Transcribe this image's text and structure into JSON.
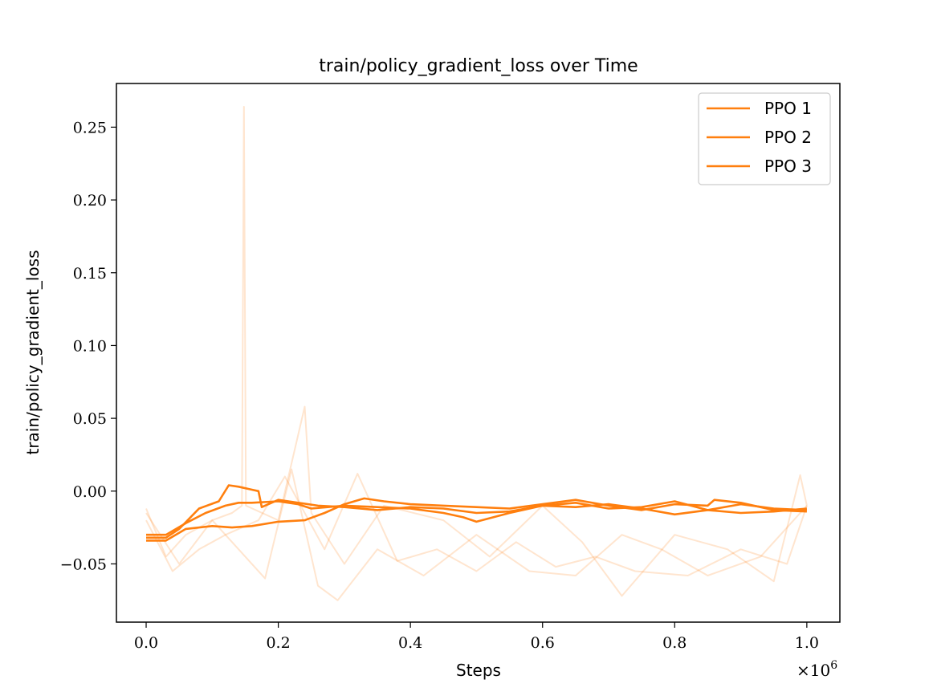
{
  "chart_data": {
    "type": "line",
    "title": "train/policy_gradient_loss over Time",
    "xlabel": "Steps",
    "ylabel": "train/policy_gradient_loss",
    "x_multiplier_label": "×10",
    "x_multiplier_exp": "6",
    "xlim": [
      -0.045,
      1.05
    ],
    "ylim": [
      -0.09,
      0.28
    ],
    "x_ticks": [
      0.0,
      0.2,
      0.4,
      0.6,
      0.8,
      1.0
    ],
    "x_tick_labels": [
      "0.0",
      "0.2",
      "0.4",
      "0.6",
      "0.8",
      "1.0"
    ],
    "y_ticks": [
      -0.05,
      0.0,
      0.05,
      0.1,
      0.15,
      0.2,
      0.25
    ],
    "y_tick_labels": [
      "−0.05",
      "0.00",
      "0.05",
      "0.10",
      "0.15",
      "0.20",
      "0.25"
    ],
    "grid": false,
    "legend_position": "top-right",
    "series_color": "#ff7f0e",
    "raw_alpha": 0.2,
    "series": [
      {
        "name": "PPO 1",
        "smoothed": {
          "x": [
            0.0,
            0.03,
            0.05,
            0.08,
            0.11,
            0.125,
            0.14,
            0.16,
            0.17,
            0.175,
            0.2,
            0.23,
            0.26,
            0.3,
            0.35,
            0.4,
            0.45,
            0.5,
            0.55,
            0.6,
            0.65,
            0.7,
            0.75,
            0.8,
            0.85,
            0.9,
            0.95,
            1.0
          ],
          "y": [
            -0.032,
            -0.032,
            -0.026,
            -0.012,
            -0.007,
            0.004,
            0.003,
            0.001,
            0.0,
            -0.011,
            -0.006,
            -0.008,
            -0.01,
            -0.011,
            -0.013,
            -0.011,
            -0.012,
            -0.015,
            -0.014,
            -0.01,
            -0.011,
            -0.009,
            -0.012,
            -0.016,
            -0.013,
            -0.009,
            -0.012,
            -0.013
          ]
        },
        "raw": {
          "x": [
            0.0,
            0.03,
            0.06,
            0.1,
            0.13,
            0.145,
            0.148,
            0.151,
            0.2,
            0.24,
            0.25,
            0.3,
            0.36,
            0.45,
            0.52,
            0.6,
            0.66,
            0.72,
            0.8,
            0.88,
            0.95,
            0.99,
            1.0
          ],
          "y": [
            -0.012,
            -0.045,
            -0.03,
            -0.02,
            -0.015,
            -0.01,
            0.264,
            -0.01,
            -0.02,
            0.058,
            -0.015,
            -0.05,
            -0.01,
            -0.02,
            -0.045,
            -0.01,
            -0.035,
            -0.072,
            -0.03,
            -0.04,
            -0.062,
            0.011,
            -0.01
          ]
        }
      },
      {
        "name": "PPO 2",
        "smoothed": {
          "x": [
            0.0,
            0.03,
            0.06,
            0.09,
            0.12,
            0.14,
            0.16,
            0.2,
            0.23,
            0.25,
            0.3,
            0.35,
            0.4,
            0.45,
            0.48,
            0.5,
            0.55,
            0.6,
            0.65,
            0.7,
            0.75,
            0.8,
            0.85,
            0.9,
            0.95,
            1.0
          ],
          "y": [
            -0.03,
            -0.03,
            -0.022,
            -0.015,
            -0.01,
            -0.008,
            -0.008,
            -0.007,
            -0.009,
            -0.012,
            -0.01,
            -0.011,
            -0.012,
            -0.015,
            -0.018,
            -0.021,
            -0.015,
            -0.01,
            -0.008,
            -0.012,
            -0.011,
            -0.007,
            -0.013,
            -0.015,
            -0.014,
            -0.012
          ]
        },
        "raw": {
          "x": [
            0.0,
            0.05,
            0.1,
            0.18,
            0.22,
            0.26,
            0.29,
            0.35,
            0.42,
            0.5,
            0.58,
            0.65,
            0.72,
            0.78,
            0.85,
            0.93,
            1.0
          ],
          "y": [
            -0.015,
            -0.05,
            -0.02,
            -0.06,
            0.015,
            -0.065,
            -0.075,
            -0.04,
            -0.058,
            -0.03,
            -0.055,
            -0.058,
            -0.03,
            -0.04,
            -0.058,
            -0.045,
            -0.01
          ]
        }
      },
      {
        "name": "PPO 3",
        "smoothed": {
          "x": [
            0.0,
            0.03,
            0.06,
            0.1,
            0.13,
            0.16,
            0.2,
            0.24,
            0.27,
            0.3,
            0.33,
            0.36,
            0.4,
            0.45,
            0.5,
            0.55,
            0.6,
            0.65,
            0.7,
            0.75,
            0.8,
            0.85,
            0.86,
            0.9,
            0.95,
            1.0
          ],
          "y": [
            -0.034,
            -0.034,
            -0.026,
            -0.024,
            -0.025,
            -0.024,
            -0.021,
            -0.02,
            -0.015,
            -0.009,
            -0.005,
            -0.007,
            -0.009,
            -0.01,
            -0.011,
            -0.012,
            -0.009,
            -0.006,
            -0.01,
            -0.013,
            -0.009,
            -0.01,
            -0.006,
            -0.008,
            -0.013,
            -0.014
          ]
        },
        "raw": {
          "x": [
            0.0,
            0.04,
            0.08,
            0.12,
            0.17,
            0.21,
            0.27,
            0.32,
            0.38,
            0.44,
            0.5,
            0.56,
            0.62,
            0.68,
            0.74,
            0.82,
            0.9,
            0.97,
            1.0
          ],
          "y": [
            -0.02,
            -0.055,
            -0.04,
            -0.03,
            -0.02,
            0.01,
            -0.04,
            0.012,
            -0.048,
            -0.04,
            -0.055,
            -0.035,
            -0.052,
            -0.045,
            -0.055,
            -0.058,
            -0.04,
            -0.05,
            -0.01
          ]
        }
      }
    ]
  }
}
